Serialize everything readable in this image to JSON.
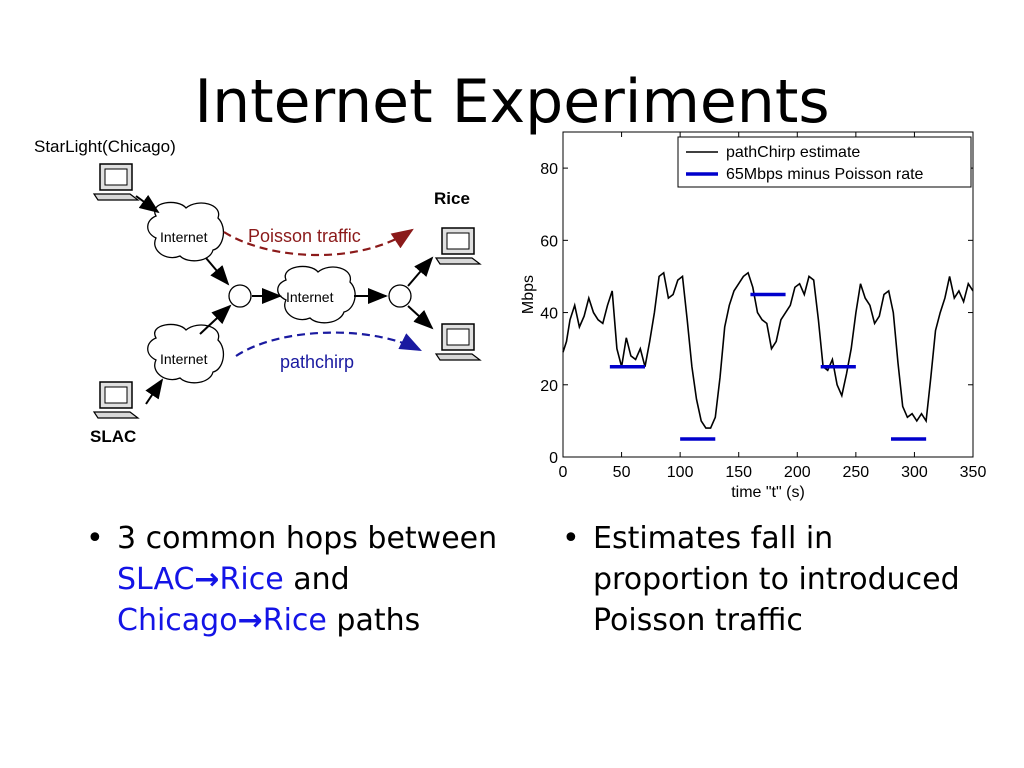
{
  "slide": {
    "title": "Internet Experiments"
  },
  "diagram": {
    "starlight_label": "StarLight(Chicago)",
    "slac_label": "SLAC",
    "rice_label": "Rice",
    "internet_label": "Internet",
    "poisson_label": "Poisson traffic",
    "pathchirp_label": "pathchirp",
    "colors": {
      "poisson": "#8b1a1a",
      "pathchirp": "#1a1aa0"
    }
  },
  "bullets_left": {
    "b1_text_a": "3 common hops between ",
    "b1_slac": "SLAC",
    "b1_arrow1": "→",
    "b1_rice1": "Rice",
    "b1_text_b": " and ",
    "b1_chicago": "Chicago",
    "b1_arrow2": "→",
    "b1_rice2": "Rice",
    "b1_text_c": " paths"
  },
  "bullets_right": {
    "b1": "Estimates fall in proportion to introduced Poisson traffic"
  },
  "chart_data": {
    "type": "line",
    "title": "",
    "xlabel": "time \"t\" (s)",
    "ylabel": "Mbps",
    "xlim": [
      0,
      350
    ],
    "ylim": [
      0,
      90
    ],
    "xticks": [
      0,
      50,
      100,
      150,
      200,
      250,
      300,
      350
    ],
    "yticks": [
      0,
      20,
      40,
      60,
      80
    ],
    "legend_position": "top-right",
    "series": [
      {
        "name": "pathChirp estimate",
        "color": "#000000",
        "x": [
          0,
          3,
          6,
          10,
          14,
          18,
          22,
          26,
          30,
          34,
          38,
          42,
          46,
          50,
          54,
          58,
          62,
          66,
          70,
          74,
          78,
          82,
          86,
          90,
          94,
          98,
          102,
          106,
          110,
          114,
          118,
          122,
          126,
          130,
          134,
          138,
          142,
          146,
          150,
          154,
          158,
          162,
          166,
          170,
          174,
          178,
          182,
          186,
          190,
          194,
          198,
          202,
          206,
          210,
          214,
          218,
          222,
          226,
          230,
          234,
          238,
          242,
          246,
          250,
          254,
          258,
          262,
          266,
          270,
          274,
          278,
          282,
          286,
          290,
          294,
          298,
          302,
          306,
          310,
          314,
          318,
          322,
          326,
          330,
          334,
          338,
          342,
          346,
          350
        ],
        "y": [
          29,
          32,
          38,
          42,
          36,
          39,
          44,
          40,
          38,
          37,
          42,
          46,
          30,
          25,
          33,
          28,
          27,
          30,
          25,
          32,
          40,
          50,
          51,
          44,
          45,
          49,
          50,
          38,
          25,
          16,
          10,
          8,
          8,
          11,
          22,
          36,
          42,
          46,
          48,
          50,
          51,
          47,
          40,
          38,
          37,
          30,
          32,
          38,
          40,
          42,
          47,
          48,
          45,
          50,
          49,
          38,
          25,
          24,
          27,
          20,
          17,
          23,
          30,
          40,
          48,
          44,
          42,
          37,
          39,
          45,
          46,
          40,
          26,
          14,
          11,
          12,
          10,
          12,
          10,
          22,
          35,
          40,
          44,
          50,
          44,
          46,
          43,
          48,
          46
        ]
      },
      {
        "name": "65Mbps minus Poisson rate",
        "color": "#0000cc",
        "segments": [
          {
            "x": [
              40,
              70
            ],
            "y": 25
          },
          {
            "x": [
              100,
              130
            ],
            "y": 5
          },
          {
            "x": [
              160,
              190
            ],
            "y": 45
          },
          {
            "x": [
              220,
              250
            ],
            "y": 25
          },
          {
            "x": [
              280,
              310
            ],
            "y": 5
          }
        ]
      }
    ]
  }
}
